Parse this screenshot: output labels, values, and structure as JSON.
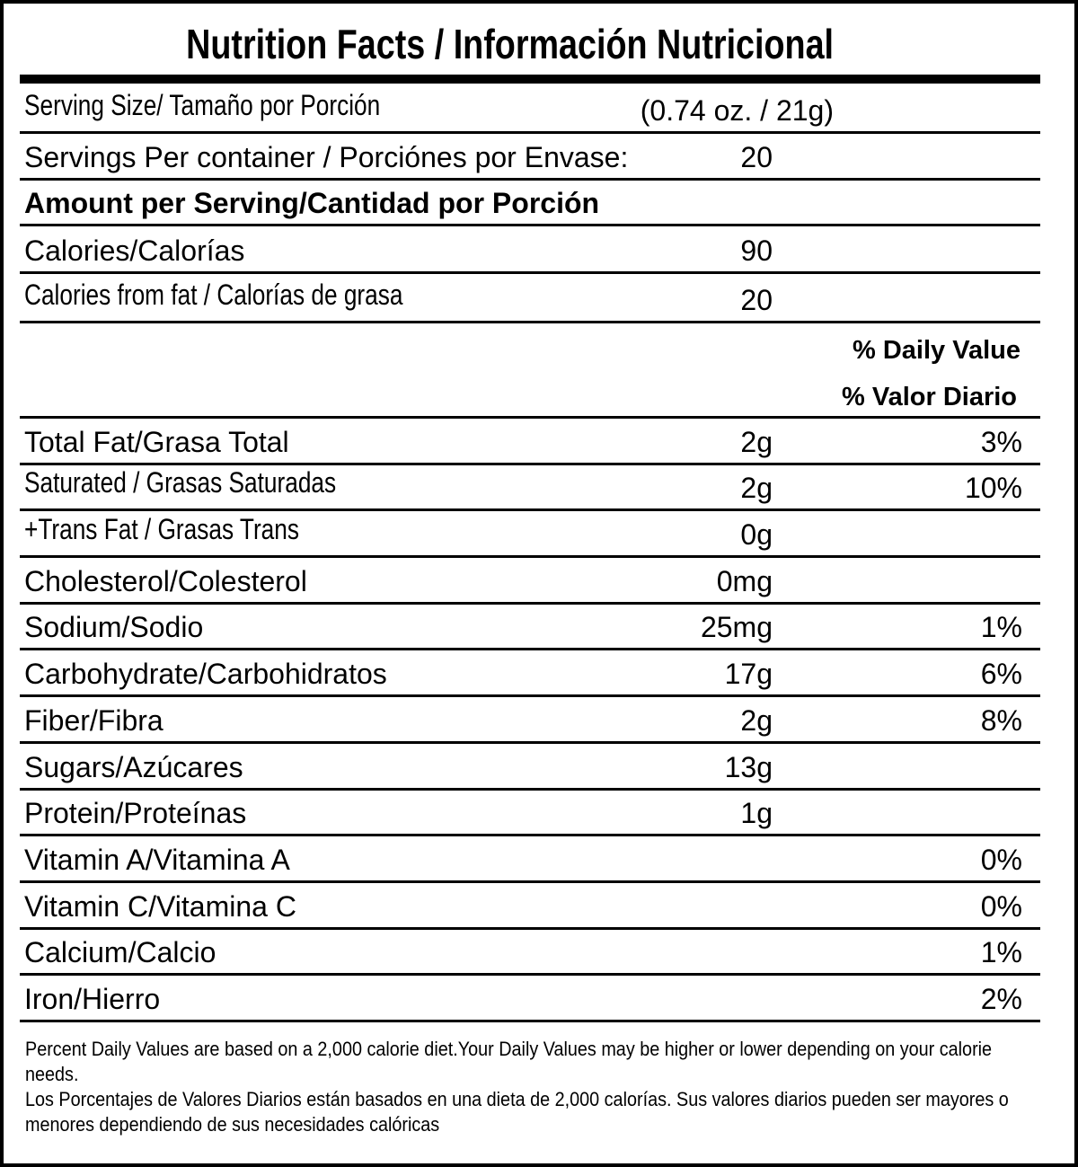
{
  "title": "Nutrition Facts / Información Nutricional",
  "serving_size": {
    "label": "Serving Size/ Tamaño por Porción",
    "value": "(0.74 oz. / 21g)"
  },
  "servings_per_container": {
    "label": "Servings Per container / Porciónes por Envase:",
    "value": "20"
  },
  "amount_header": "Amount per Serving/Cantidad por Porción",
  "calories": {
    "label": "Calories/Calorías",
    "value": "90"
  },
  "calories_from_fat": {
    "label": "Calories from fat / Calorías de grasa",
    "value": "20"
  },
  "daily_value_header": {
    "line1": "% Daily Value",
    "line2": "% Valor Diario"
  },
  "nutrients": [
    {
      "label": "Total Fat/Grasa Total",
      "amount": "2g",
      "dv": "3%"
    },
    {
      "label": "Saturated / Grasas Saturadas",
      "amount": "2g",
      "dv": "10%",
      "condensed": true
    },
    {
      "label": "+Trans Fat / Grasas Trans",
      "amount": "0g",
      "dv": "",
      "condensed": true
    },
    {
      "label": "Cholesterol/Colesterol",
      "amount": "0mg",
      "dv": ""
    },
    {
      "label": "Sodium/Sodio",
      "amount": "25mg",
      "dv": "1%"
    },
    {
      "label": "Carbohydrate/Carbohidratos",
      "amount": "17g",
      "dv": "6%"
    },
    {
      "label": "Fiber/Fibra",
      "amount": "2g",
      "dv": "8%"
    },
    {
      "label": "Sugars/Azúcares",
      "amount": "13g",
      "dv": ""
    },
    {
      "label": "Protein/Proteínas",
      "amount": "1g",
      "dv": ""
    },
    {
      "label": "Vitamin A/Vitamina A",
      "amount": "",
      "dv": "0%"
    },
    {
      "label": "Vitamin C/Vitamina C",
      "amount": "",
      "dv": "0%"
    },
    {
      "label": "Calcium/Calcio",
      "amount": "",
      "dv": "1%"
    },
    {
      "label": "Iron/Hierro",
      "amount": "",
      "dv": "2%"
    }
  ],
  "footer": {
    "english": "Percent Daily Values are based on a 2,000 calorie diet.Your Daily Values may be higher or lower depending on your calorie needs.",
    "spanish": "Los Porcentajes de Valores Diarios están basados en una dieta de 2,000 calorías. Sus valores diarios pueden ser mayores o menores dependiendo de sus necesidades calóricas"
  }
}
